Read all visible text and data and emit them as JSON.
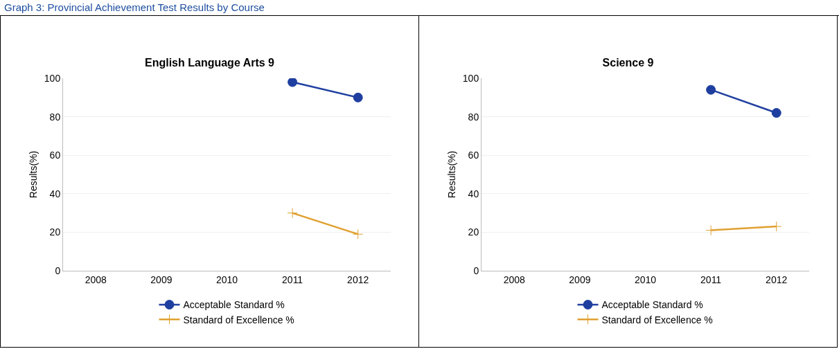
{
  "chart_data": [
    {
      "type": "line",
      "title": "English Language Arts 9",
      "ylabel": "Results(%)",
      "annotations": [
        "Graph 3: Provincial Achievement Test Results by Course"
      ],
      "categories": [
        "2008",
        "2009",
        "2010",
        "2011",
        "2012"
      ],
      "series": [
        {
          "name": "Acceptable Standard %",
          "color": "#1f3fa0",
          "marker": "circle",
          "values": [
            null,
            null,
            null,
            98,
            90
          ]
        },
        {
          "name": "Standard of Excellence %",
          "color": "#e0a030",
          "marker": "cross",
          "values": [
            null,
            null,
            null,
            30,
            19
          ]
        }
      ],
      "ylim": [
        0,
        100
      ],
      "yticks": [
        0,
        20,
        40,
        60,
        80,
        100
      ],
      "grid": "y",
      "legend": "bottom"
    },
    {
      "type": "line",
      "title": "Science 9",
      "ylabel": "Results(%)",
      "categories": [
        "2008",
        "2009",
        "2010",
        "2011",
        "2012"
      ],
      "series": [
        {
          "name": "Acceptable Standard %",
          "color": "#1f3fa0",
          "marker": "circle",
          "values": [
            null,
            null,
            null,
            94,
            82
          ]
        },
        {
          "name": "Standard of Excellence %",
          "color": "#e0a030",
          "marker": "cross",
          "values": [
            null,
            null,
            null,
            21,
            23
          ]
        }
      ],
      "ylim": [
        0,
        100
      ],
      "yticks": [
        0,
        20,
        40,
        60,
        80,
        100
      ],
      "grid": "y",
      "legend": "bottom"
    }
  ]
}
